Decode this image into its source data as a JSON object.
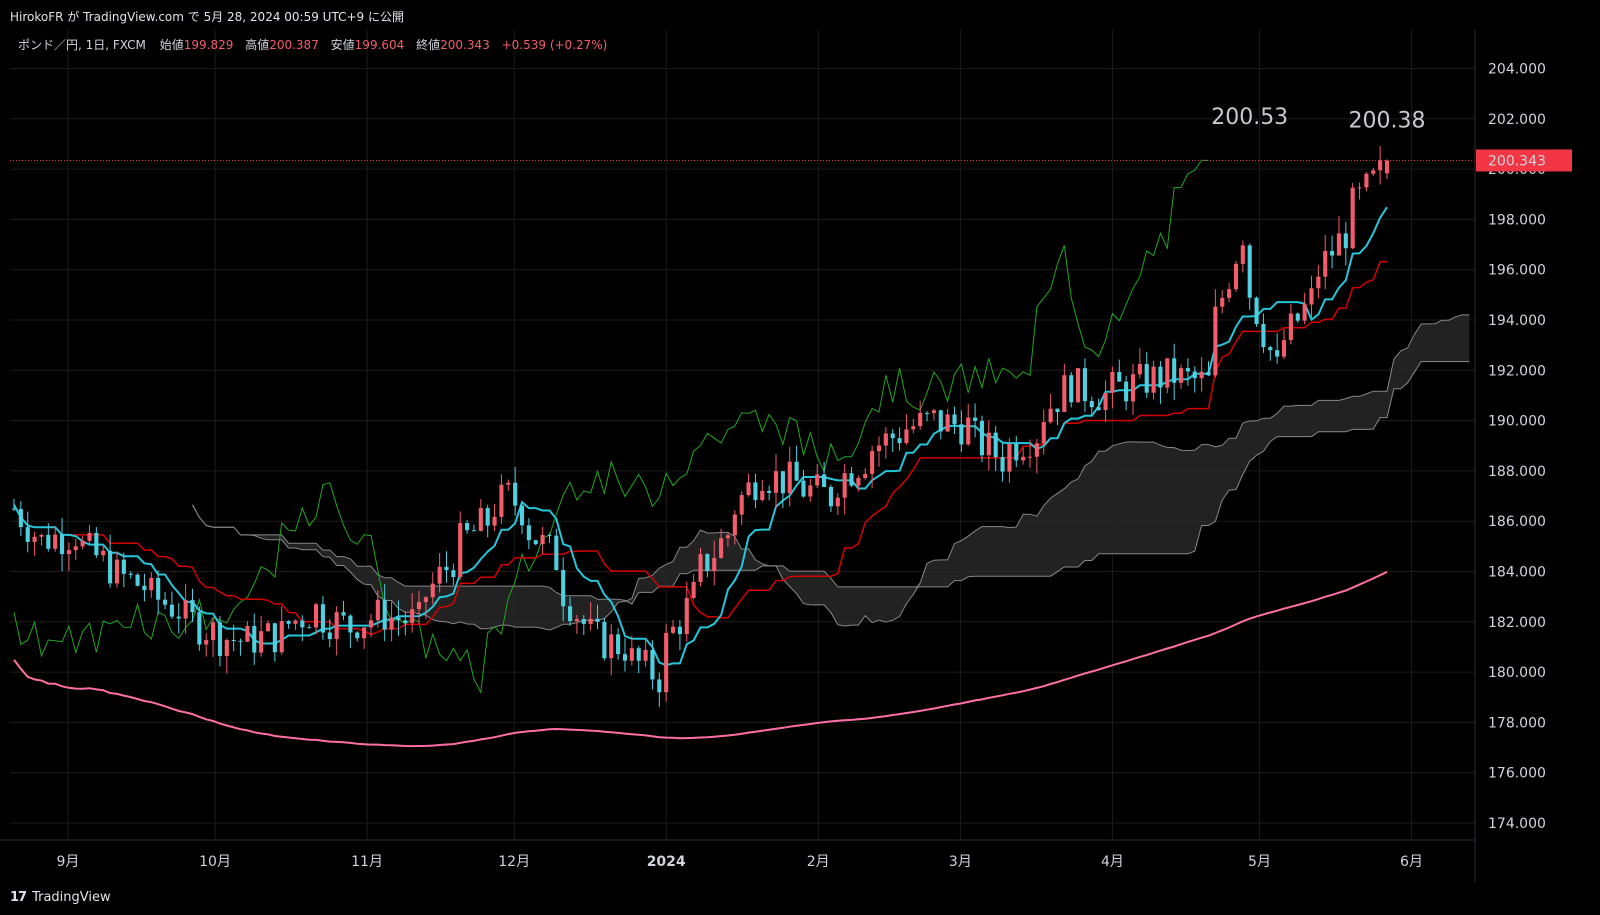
{
  "attribution": "HirokoFR が TradingView.com で 5月 28, 2024 00:59 UTC+9 に公開",
  "footer_logo": "TradingView",
  "legend": {
    "symbol": "ポンド／円, 1日, FXCM",
    "open_label": "始値",
    "open": "199.829",
    "high_label": "高値",
    "high": "200.387",
    "low_label": "安値",
    "low": "199.604",
    "close_label": "終値",
    "close": "200.343",
    "change": "+0.539 (+0.27%)"
  },
  "colors": {
    "background": "#000000",
    "up": "#f25c6b",
    "down": "#4fd0e0",
    "tenkan": "#26c6da",
    "kijun": "#d50000",
    "chikou": "#1fa81f",
    "ma": "#ff6fa5",
    "cloud": "#2a2a2a",
    "cloud_line": "#888888",
    "price_line": "#f23645"
  },
  "chart_data": {
    "type": "candlestick",
    "symbol": "ポンド／円",
    "interval": "1日",
    "source": "FXCM",
    "ylim": [
      173,
      205
    ],
    "y_ticks": [
      "204.000",
      "202.000",
      "200.000",
      "198.000",
      "196.000",
      "194.000",
      "192.000",
      "190.000",
      "188.000",
      "186.000",
      "184.000",
      "182.000",
      "180.000",
      "178.000",
      "176.000",
      "174.000"
    ],
    "x_ticks": [
      "9月",
      "10月",
      "11月",
      "12月",
      "2024",
      "2月",
      "3月",
      "4月",
      "5月",
      "6月"
    ],
    "last_price": "200.343",
    "annotations": [
      {
        "text": "200.53",
        "date": "2024-04-29",
        "price": 200.53
      },
      {
        "text": "200.38",
        "date": "2024-05-27",
        "price": 200.38
      }
    ],
    "close_series": [
      [
        "2023-08-21",
        186.5
      ],
      [
        "2023-08-25",
        185.2
      ],
      [
        "2023-09-01",
        185.5
      ],
      [
        "2023-09-08",
        184.2
      ],
      [
        "2023-09-15",
        183.4
      ],
      [
        "2023-09-22",
        182.5
      ],
      [
        "2023-09-29",
        181.6
      ],
      [
        "2023-10-06",
        181.2
      ],
      [
        "2023-10-13",
        181.5
      ],
      [
        "2023-10-20",
        182.5
      ],
      [
        "2023-10-27",
        181.8
      ],
      [
        "2023-11-03",
        182.3
      ],
      [
        "2023-11-10",
        182.0
      ],
      [
        "2023-11-17",
        184.5
      ],
      [
        "2023-11-24",
        186.0
      ],
      [
        "2023-11-29",
        187.0
      ],
      [
        "2023-12-01",
        186.5
      ],
      [
        "2023-12-08",
        184.5
      ],
      [
        "2023-12-15",
        181.5
      ],
      [
        "2023-12-22",
        181.0
      ],
      [
        "2023-12-29",
        179.8
      ],
      [
        "2024-01-05",
        183.0
      ],
      [
        "2024-01-12",
        185.5
      ],
      [
        "2024-01-19",
        188.0
      ],
      [
        "2024-01-26",
        187.5
      ],
      [
        "2024-02-02",
        187.0
      ],
      [
        "2024-02-09",
        188.5
      ],
      [
        "2024-02-16",
        189.5
      ],
      [
        "2024-02-23",
        190.0
      ],
      [
        "2024-03-01",
        189.8
      ],
      [
        "2024-03-08",
        188.5
      ],
      [
        "2024-03-15",
        189.5
      ],
      [
        "2024-03-22",
        191.5
      ],
      [
        "2024-03-29",
        191.0
      ],
      [
        "2024-04-05",
        191.5
      ],
      [
        "2024-04-12",
        191.8
      ],
      [
        "2024-04-19",
        191.5
      ],
      [
        "2024-04-26",
        197.5
      ],
      [
        "2024-05-03",
        192.0
      ],
      [
        "2024-05-10",
        194.8
      ],
      [
        "2024-05-17",
        197.5
      ],
      [
        "2024-05-24",
        199.8
      ],
      [
        "2024-05-27",
        200.343
      ]
    ]
  }
}
